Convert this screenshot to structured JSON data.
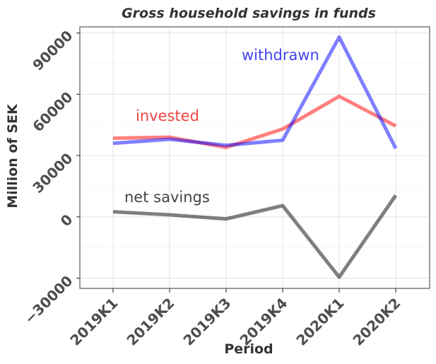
{
  "chart_data": {
    "type": "line",
    "title": "Gross household savings in funds",
    "xlabel": "Period",
    "ylabel": "Million of SEK",
    "categories": [
      "2019K1",
      "2019K2",
      "2019K3",
      "2019K4",
      "2020K1",
      "2020K2"
    ],
    "ylim": [
      -35000,
      93000
    ],
    "yticks": [
      "-30000",
      "0",
      "30000",
      "60000",
      "90000"
    ],
    "grid": true,
    "legend": "none",
    "series": [
      {
        "name": "invested",
        "color": "#ff0000",
        "values": [
          38500,
          39000,
          34000,
          43000,
          59000,
          44500
        ]
      },
      {
        "name": "withdrawn",
        "color": "#0000ff",
        "values": [
          36000,
          38000,
          35000,
          37500,
          88000,
          33500
        ]
      },
      {
        "name": "net savings",
        "color": "#000000",
        "values": [
          2500,
          1000,
          -1000,
          5500,
          -29500,
          10500
        ]
      }
    ]
  }
}
